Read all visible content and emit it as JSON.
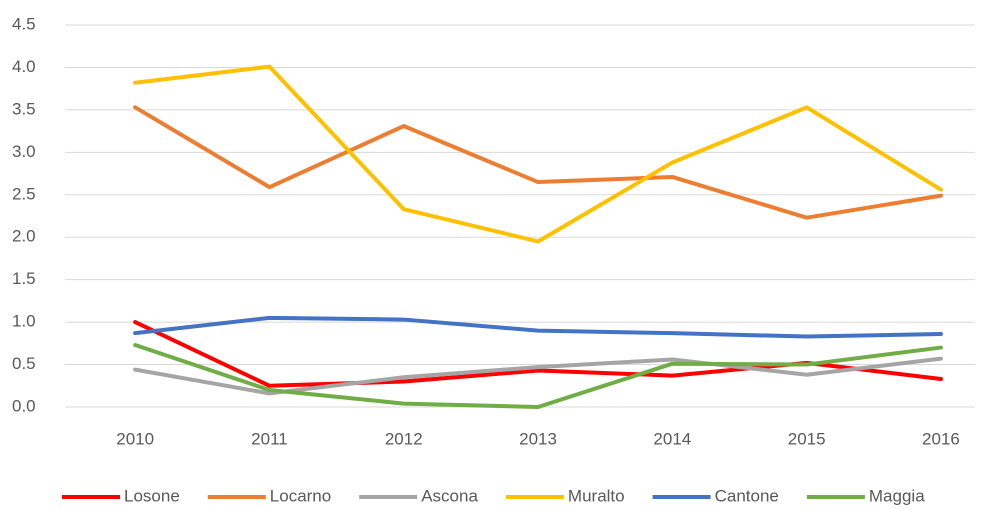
{
  "chart_data": {
    "type": "line",
    "categories": [
      "2010",
      "2011",
      "2012",
      "2013",
      "2014",
      "2015",
      "2016"
    ],
    "series": [
      {
        "name": "Losone",
        "color": "#ff0000",
        "values": [
          1.0,
          0.25,
          0.3,
          0.43,
          0.37,
          0.52,
          0.33
        ]
      },
      {
        "name": "Locarno",
        "color": "#ed7d31",
        "values": [
          3.53,
          2.59,
          3.31,
          2.65,
          2.71,
          2.23,
          2.49
        ]
      },
      {
        "name": "Ascona",
        "color": "#a5a5a5",
        "values": [
          0.44,
          0.16,
          0.35,
          0.47,
          0.56,
          0.38,
          0.57
        ]
      },
      {
        "name": "Muralto",
        "color": "#ffc000",
        "values": [
          3.82,
          4.01,
          2.33,
          1.95,
          2.88,
          3.53,
          2.56
        ]
      },
      {
        "name": "Cantone",
        "color": "#4472c4",
        "values": [
          0.87,
          1.05,
          1.03,
          0.9,
          0.87,
          0.83,
          0.86
        ]
      },
      {
        "name": "Maggia",
        "color": "#70ad47",
        "values": [
          0.73,
          0.2,
          0.04,
          0.0,
          0.51,
          0.5,
          0.7
        ]
      }
    ],
    "ylim": [
      0,
      4.5
    ],
    "yticks": [
      {
        "value": 0,
        "label": "0.0"
      },
      0.5,
      {
        "value": 1,
        "label": "1.0"
      },
      1.5,
      {
        "value": 2,
        "label": "2.0"
      },
      2.5,
      {
        "value": 3,
        "label": "3.0"
      },
      3.5,
      {
        "value": 4,
        "label": "4.0"
      },
      4.5
    ],
    "grid": true,
    "legend": "bottom"
  }
}
